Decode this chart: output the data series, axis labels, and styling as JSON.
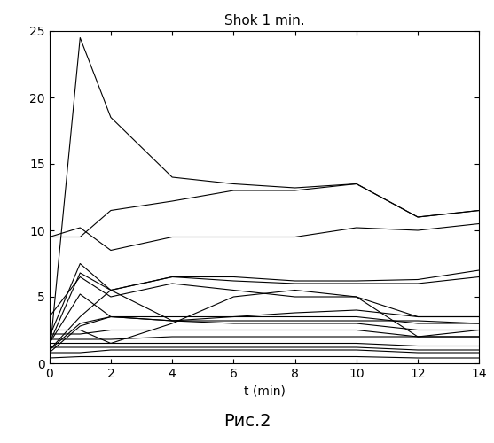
{
  "title": "Shok 1 min.",
  "xlabel": "t (min)",
  "caption": "Рис.2",
  "xlim": [
    0,
    14
  ],
  "ylim": [
    0,
    25
  ],
  "xticks": [
    0,
    2,
    4,
    6,
    8,
    10,
    12,
    14
  ],
  "yticks": [
    0,
    5,
    10,
    15,
    20,
    25
  ],
  "lines": [
    {
      "x": [
        0,
        1,
        2,
        4,
        6,
        8,
        10,
        12,
        14
      ],
      "y": [
        0.5,
        24.5,
        18.5,
        14.0,
        13.5,
        13.2,
        13.5,
        11.0,
        11.5
      ]
    },
    {
      "x": [
        0,
        1,
        2,
        4,
        6,
        8,
        10,
        12,
        14
      ],
      "y": [
        9.5,
        9.5,
        11.5,
        12.2,
        13.0,
        13.0,
        13.5,
        11.0,
        11.5
      ]
    },
    {
      "x": [
        0,
        1,
        2,
        4,
        6,
        8,
        10,
        12,
        14
      ],
      "y": [
        9.5,
        10.2,
        8.5,
        9.5,
        9.5,
        9.5,
        10.2,
        10.0,
        10.5
      ]
    },
    {
      "x": [
        0,
        1,
        2,
        4,
        6,
        8,
        10,
        12,
        14
      ],
      "y": [
        2.0,
        7.5,
        5.5,
        6.5,
        6.5,
        6.2,
        6.2,
        6.3,
        7.0
      ]
    },
    {
      "x": [
        0,
        1,
        2,
        4,
        6,
        8,
        10,
        12,
        14
      ],
      "y": [
        1.5,
        6.8,
        5.5,
        6.5,
        6.2,
        6.0,
        6.0,
        6.0,
        6.5
      ]
    },
    {
      "x": [
        0,
        1,
        2,
        4,
        6,
        8,
        10,
        12,
        14
      ],
      "y": [
        3.5,
        6.5,
        5.0,
        6.0,
        5.5,
        5.0,
        5.0,
        3.5,
        3.5
      ]
    },
    {
      "x": [
        0,
        1,
        2,
        4,
        6,
        8,
        10,
        12,
        14
      ],
      "y": [
        1.5,
        5.2,
        3.5,
        3.5,
        3.5,
        3.8,
        4.0,
        3.5,
        3.5
      ]
    },
    {
      "x": [
        0,
        1,
        2,
        4,
        6,
        8,
        10,
        12,
        14
      ],
      "y": [
        1.0,
        3.5,
        5.5,
        3.2,
        3.2,
        3.2,
        3.2,
        3.2,
        3.0
      ]
    },
    {
      "x": [
        0,
        1,
        2,
        4,
        6,
        8,
        10,
        12,
        14
      ],
      "y": [
        1.0,
        3.0,
        3.5,
        3.2,
        3.5,
        3.5,
        3.5,
        3.0,
        3.0
      ]
    },
    {
      "x": [
        0,
        1,
        2,
        4,
        6,
        8,
        10,
        12,
        14
      ],
      "y": [
        0.8,
        2.8,
        3.5,
        3.2,
        3.0,
        3.0,
        3.0,
        2.5,
        2.5
      ]
    },
    {
      "x": [
        0,
        1,
        2,
        4,
        6,
        8,
        10,
        12,
        14
      ],
      "y": [
        2.5,
        2.5,
        1.5,
        3.0,
        5.0,
        5.5,
        5.0,
        2.0,
        2.5
      ]
    },
    {
      "x": [
        0,
        1,
        2,
        4,
        6,
        8,
        10,
        12,
        14
      ],
      "y": [
        2.2,
        2.2,
        2.5,
        2.5,
        2.5,
        2.5,
        2.5,
        2.0,
        2.0
      ]
    },
    {
      "x": [
        0,
        1,
        2,
        4,
        6,
        8,
        10,
        12,
        14
      ],
      "y": [
        1.8,
        1.8,
        1.8,
        2.0,
        2.0,
        2.0,
        2.0,
        2.0,
        2.0
      ]
    },
    {
      "x": [
        0,
        1,
        2,
        4,
        6,
        8,
        10,
        12,
        14
      ],
      "y": [
        1.5,
        1.5,
        1.5,
        1.5,
        1.5,
        1.5,
        1.5,
        1.3,
        1.3
      ]
    },
    {
      "x": [
        0,
        1,
        2,
        4,
        6,
        8,
        10,
        12,
        14
      ],
      "y": [
        1.2,
        1.2,
        1.2,
        1.2,
        1.2,
        1.2,
        1.2,
        1.0,
        1.0
      ]
    },
    {
      "x": [
        0,
        1,
        2,
        4,
        6,
        8,
        10,
        12,
        14
      ],
      "y": [
        0.8,
        0.8,
        1.0,
        1.0,
        1.0,
        1.0,
        1.0,
        0.8,
        0.8
      ]
    },
    {
      "x": [
        0,
        1,
        2,
        4,
        6,
        8,
        10,
        12,
        14
      ],
      "y": [
        0.4,
        0.5,
        0.5,
        0.5,
        0.5,
        0.5,
        0.5,
        0.4,
        0.4
      ]
    }
  ],
  "line_color": "#000000",
  "line_width": 0.8,
  "bg_color": "#ffffff",
  "figsize": [
    5.57,
    5.0
  ],
  "dpi": 100,
  "title_fontsize": 11,
  "xlabel_fontsize": 10,
  "caption_fontsize": 14,
  "tick_labelsize": 10
}
